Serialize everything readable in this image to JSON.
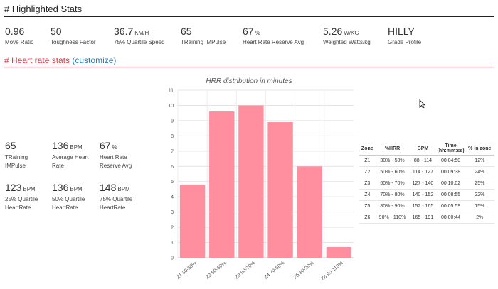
{
  "highlighted": {
    "title": "# Highlighted Stats",
    "stats": [
      {
        "value": "0.96",
        "unit": "",
        "label": "Move Ratio"
      },
      {
        "value": "50",
        "unit": "",
        "label": "Toughness Factor"
      },
      {
        "value": "36.7",
        "unit": "KM/H",
        "label": "75% Quartile Speed"
      },
      {
        "value": "65",
        "unit": "",
        "label": "TRaining IMPulse"
      },
      {
        "value": "67",
        "unit": "%",
        "label": "Heart Rate Reserve Avg"
      },
      {
        "value": "5.26",
        "unit": "W/KG",
        "label": "Weighted Watts/kg"
      },
      {
        "value": "HILLY",
        "unit": "",
        "label": "Grade Profile"
      }
    ]
  },
  "heart": {
    "title": "# Heart rate stats",
    "customize": "(customize)",
    "stats": [
      {
        "value": "65",
        "unit": "",
        "label": "TRaining IMPulse"
      },
      {
        "value": "136",
        "unit": "BPM",
        "label": "Average Heart Rate"
      },
      {
        "value": "67",
        "unit": "%",
        "label": "Heart Rate Reserve Avg"
      },
      {
        "value": "123",
        "unit": "BPM",
        "label": "25% Quartile HeartRate"
      },
      {
        "value": "136",
        "unit": "BPM",
        "label": "50% Quartile HeartRate"
      },
      {
        "value": "148",
        "unit": "BPM",
        "label": "75% Quartile HeartRate"
      }
    ]
  },
  "chart_data": {
    "type": "bar",
    "title": "HRR distribution in minutes",
    "categories": [
      "Z1 30-50%",
      "Z2 50-60%",
      "Z3 60-70%",
      "Z4 70-80%",
      "Z5 80-90%",
      "Z6 90-110%"
    ],
    "values": [
      4.8,
      9.6,
      10.0,
      8.9,
      6.0,
      0.7
    ],
    "ylim": [
      0,
      11
    ],
    "yticks": [
      "0",
      "1",
      "2",
      "3",
      "4",
      "5",
      "6",
      "7",
      "8",
      "9",
      "10",
      "11"
    ],
    "grid": true,
    "color": "#ff8f9f"
  },
  "zone_table": {
    "headers": [
      "Zone",
      "%HRR",
      "BPM",
      "Time (hh:mm:ss)",
      "% in zone"
    ],
    "rows": [
      [
        "Z1",
        "30% - 50%",
        "88 - 114",
        "00:04:50",
        "12%"
      ],
      [
        "Z2",
        "50% - 60%",
        "114 - 127",
        "00:09:38",
        "24%"
      ],
      [
        "Z3",
        "60% - 70%",
        "127 - 140",
        "00:10:02",
        "25%"
      ],
      [
        "Z4",
        "70% - 80%",
        "140 - 152",
        "00:08:55",
        "22%"
      ],
      [
        "Z5",
        "80% - 90%",
        "152 - 165",
        "00:05:59",
        "15%"
      ],
      [
        "Z6",
        "90% - 110%",
        "165 - 191",
        "00:00:44",
        "2%"
      ]
    ]
  }
}
